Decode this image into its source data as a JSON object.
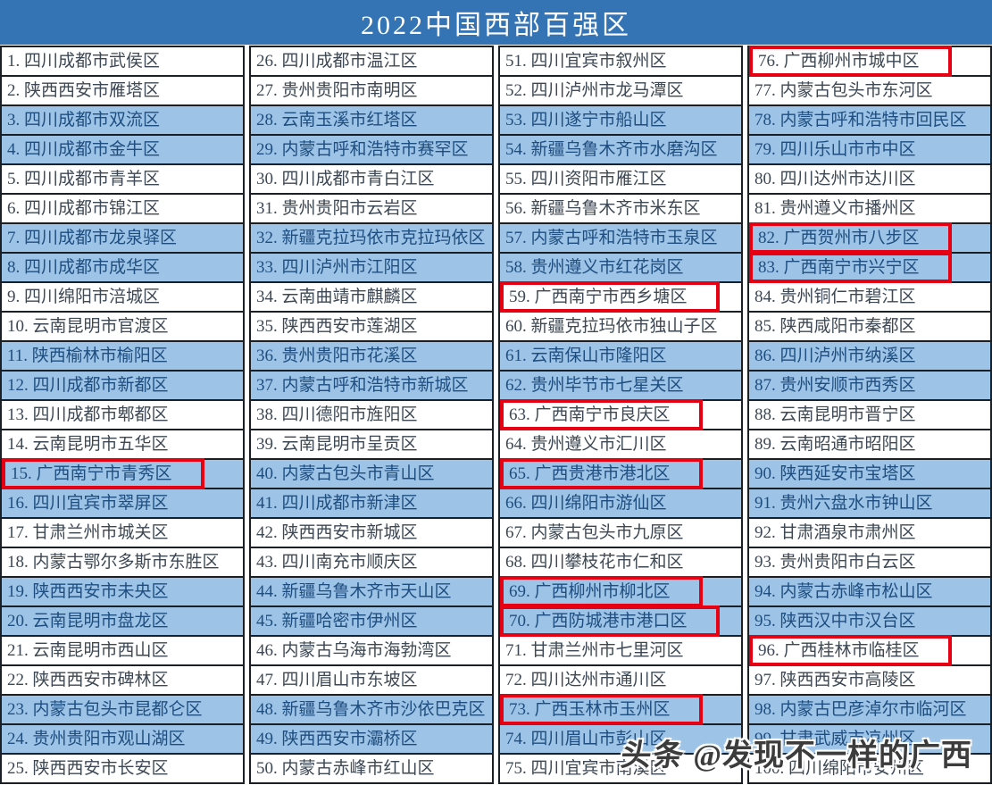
{
  "title": "2022中国西部百强区",
  "watermark": {
    "brand": "头条",
    "handle": "@发现不一样的广西"
  },
  "colors": {
    "title_bar_bg": "#3474b4",
    "row_alt_bg": "#9dc3e6",
    "grid_border": "#1b2026",
    "text_default": "#3d4854",
    "text_on_alt": "#1e4e80",
    "highlight_box": "#e60012",
    "title_text": "#ffffff",
    "watermark_text": "#3c3c3c"
  },
  "columns": [
    {
      "items": [
        {
          "label": "1. 四川成都市武侯区",
          "highlighted": false
        },
        {
          "label": "2. 陕西西安市雁塔区",
          "highlighted": false
        },
        {
          "label": "3. 四川成都市双流区",
          "highlighted": false
        },
        {
          "label": "4. 四川成都市金牛区",
          "highlighted": false
        },
        {
          "label": "5. 四川成都市青羊区",
          "highlighted": false
        },
        {
          "label": "6. 四川成都市锦江区",
          "highlighted": false
        },
        {
          "label": "7. 四川成都市龙泉驿区",
          "highlighted": false
        },
        {
          "label": "8. 四川成都市成华区",
          "highlighted": false
        },
        {
          "label": "9. 四川绵阳市涪城区",
          "highlighted": false
        },
        {
          "label": "10. 云南昆明市官渡区",
          "highlighted": false
        },
        {
          "label": "11. 陕西榆林市榆阳区",
          "highlighted": false
        },
        {
          "label": "12. 四川成都市新都区",
          "highlighted": false
        },
        {
          "label": "13. 四川成都市郫都区",
          "highlighted": false
        },
        {
          "label": "14. 云南昆明市五华区",
          "highlighted": false
        },
        {
          "label": "15. 广西南宁市青秀区",
          "highlighted": true
        },
        {
          "label": "16. 四川宜宾市翠屏区",
          "highlighted": false
        },
        {
          "label": "17. 甘肃兰州市城关区",
          "highlighted": false
        },
        {
          "label": "18. 内蒙古鄂尔多斯市东胜区",
          "highlighted": false
        },
        {
          "label": "19. 陕西西安市未央区",
          "highlighted": false
        },
        {
          "label": "20. 云南昆明市盘龙区",
          "highlighted": false
        },
        {
          "label": "21. 云南昆明市西山区",
          "highlighted": false
        },
        {
          "label": "22. 陕西西安市碑林区",
          "highlighted": false
        },
        {
          "label": "23. 内蒙古包头市昆都仑区",
          "highlighted": false
        },
        {
          "label": "24. 贵州贵阳市观山湖区",
          "highlighted": false
        },
        {
          "label": "25. 陕西西安市长安区",
          "highlighted": false
        }
      ]
    },
    {
      "items": [
        {
          "label": "26. 四川成都市温江区",
          "highlighted": false
        },
        {
          "label": "27. 贵州贵阳市南明区",
          "highlighted": false
        },
        {
          "label": "28. 云南玉溪市红塔区",
          "highlighted": false
        },
        {
          "label": "29. 内蒙古呼和浩特市赛罕区",
          "highlighted": false
        },
        {
          "label": "30. 四川成都市青白江区",
          "highlighted": false
        },
        {
          "label": "31. 贵州贵阳市云岩区",
          "highlighted": false
        },
        {
          "label": "32. 新疆克拉玛依市克拉玛依区",
          "highlighted": false
        },
        {
          "label": "33. 四川泸州市江阳区",
          "highlighted": false
        },
        {
          "label": "34. 云南曲靖市麒麟区",
          "highlighted": false
        },
        {
          "label": "35. 陕西西安市莲湖区",
          "highlighted": false
        },
        {
          "label": "36. 贵州贵阳市花溪区",
          "highlighted": false
        },
        {
          "label": "37. 内蒙古呼和浩特市新城区",
          "highlighted": false
        },
        {
          "label": "38. 四川德阳市旌阳区",
          "highlighted": false
        },
        {
          "label": "39. 云南昆明市呈贡区",
          "highlighted": false
        },
        {
          "label": "40. 内蒙古包头市青山区",
          "highlighted": false
        },
        {
          "label": "41. 四川成都市新津区",
          "highlighted": false
        },
        {
          "label": "42. 陕西西安市新城区",
          "highlighted": false
        },
        {
          "label": "43. 四川南充市顺庆区",
          "highlighted": false
        },
        {
          "label": "44. 新疆乌鲁木齐市天山区",
          "highlighted": false
        },
        {
          "label": "45. 新疆哈密市伊州区",
          "highlighted": false
        },
        {
          "label": "46. 内蒙古乌海市海勃湾区",
          "highlighted": false
        },
        {
          "label": "47. 四川眉山市东坡区",
          "highlighted": false
        },
        {
          "label": "48. 新疆乌鲁木齐市沙依巴克区",
          "highlighted": false
        },
        {
          "label": "49. 陕西西安市灞桥区",
          "highlighted": false
        },
        {
          "label": "50. 内蒙古赤峰市红山区",
          "highlighted": false
        }
      ]
    },
    {
      "items": [
        {
          "label": "51. 四川宜宾市叙州区",
          "highlighted": false
        },
        {
          "label": "52. 四川泸州市龙马潭区",
          "highlighted": false
        },
        {
          "label": "53. 四川遂宁市船山区",
          "highlighted": false
        },
        {
          "label": "54. 新疆乌鲁木齐市水磨沟区",
          "highlighted": false
        },
        {
          "label": "55. 四川资阳市雁江区",
          "highlighted": false
        },
        {
          "label": "56. 新疆乌鲁木齐市米东区",
          "highlighted": false
        },
        {
          "label": "57. 内蒙古呼和浩特市玉泉区",
          "highlighted": false
        },
        {
          "label": "58. 贵州遵义市红花岗区",
          "highlighted": false
        },
        {
          "label": "59. 广西南宁市西乡塘区",
          "highlighted": true
        },
        {
          "label": "60. 新疆克拉玛依市独山子区",
          "highlighted": false
        },
        {
          "label": "61. 云南保山市隆阳区",
          "highlighted": false
        },
        {
          "label": "62. 贵州毕节市七星关区",
          "highlighted": false
        },
        {
          "label": "63. 广西南宁市良庆区",
          "highlighted": true
        },
        {
          "label": "64. 贵州遵义市汇川区",
          "highlighted": false
        },
        {
          "label": "65. 广西贵港市港北区",
          "highlighted": true
        },
        {
          "label": "66. 四川绵阳市游仙区",
          "highlighted": false
        },
        {
          "label": "67. 内蒙古包头市九原区",
          "highlighted": false
        },
        {
          "label": "68. 四川攀枝花市仁和区",
          "highlighted": false
        },
        {
          "label": "69. 广西柳州市柳北区",
          "highlighted": true
        },
        {
          "label": "70. 广西防城港市港口区",
          "highlighted": true
        },
        {
          "label": "71. 甘肃兰州市七里河区",
          "highlighted": false
        },
        {
          "label": "72. 四川达州市通川区",
          "highlighted": false
        },
        {
          "label": "73. 广西玉林市玉州区",
          "highlighted": true
        },
        {
          "label": "74. 四川眉山市彭山区",
          "highlighted": false
        },
        {
          "label": "75. 四川宜宾市南溪区",
          "highlighted": false
        }
      ]
    },
    {
      "items": [
        {
          "label": "76. 广西柳州市城中区",
          "highlighted": true
        },
        {
          "label": "77. 内蒙古包头市东河区",
          "highlighted": false
        },
        {
          "label": "78. 内蒙古呼和浩特市回民区",
          "highlighted": false
        },
        {
          "label": "79. 四川乐山市市中区",
          "highlighted": false
        },
        {
          "label": "80. 四川达州市达川区",
          "highlighted": false
        },
        {
          "label": "81. 贵州遵义市播州区",
          "highlighted": false
        },
        {
          "label": "82. 广西贺州市八步区",
          "highlighted": true
        },
        {
          "label": "83. 广西南宁市兴宁区",
          "highlighted": true
        },
        {
          "label": "84. 贵州铜仁市碧江区",
          "highlighted": false
        },
        {
          "label": "85. 陕西咸阳市秦都区",
          "highlighted": false
        },
        {
          "label": "86. 四川泸州市纳溪区",
          "highlighted": false
        },
        {
          "label": "87. 贵州安顺市西秀区",
          "highlighted": false
        },
        {
          "label": "88. 云南昆明市晋宁区",
          "highlighted": false
        },
        {
          "label": "89. 云南昭通市昭阳区",
          "highlighted": false
        },
        {
          "label": "90. 陕西延安市宝塔区",
          "highlighted": false
        },
        {
          "label": "91. 贵州六盘水市钟山区",
          "highlighted": false
        },
        {
          "label": "92. 甘肃酒泉市肃州区",
          "highlighted": false
        },
        {
          "label": "93. 贵州贵阳市白云区",
          "highlighted": false
        },
        {
          "label": "94. 内蒙古赤峰市松山区",
          "highlighted": false
        },
        {
          "label": "95. 陕西汉中市汉台区",
          "highlighted": false
        },
        {
          "label": "96. 广西桂林市临桂区",
          "highlighted": true
        },
        {
          "label": "97. 陕西西安市高陵区",
          "highlighted": false
        },
        {
          "label": "98. 内蒙古巴彦淖尔市临河区",
          "highlighted": false
        },
        {
          "label": "99. 甘肃武威市凉州区",
          "highlighted": false
        },
        {
          "label": "100. 四川绵阳市安州区",
          "highlighted": false
        }
      ]
    }
  ]
}
